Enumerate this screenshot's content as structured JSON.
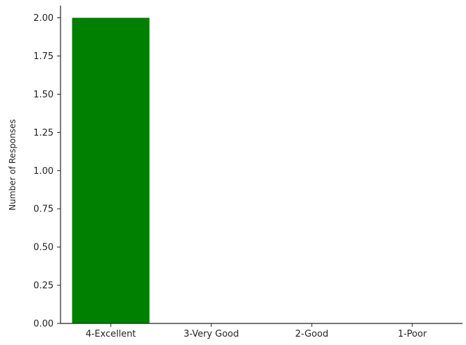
{
  "chart_data": {
    "type": "bar",
    "categories": [
      "4-Excellent",
      "3-Very Good",
      "2-Good",
      "1-Poor"
    ],
    "values": [
      2,
      0,
      0,
      0
    ],
    "xlabel": "",
    "ylabel": "Number of Responses",
    "ylim": [
      0,
      2.08
    ],
    "yticks": [
      "0.00",
      "0.25",
      "0.50",
      "0.75",
      "1.00",
      "1.25",
      "1.50",
      "1.75",
      "2.00"
    ],
    "bar_color": "#008000",
    "grid": false,
    "spines": [
      "left",
      "bottom"
    ]
  }
}
